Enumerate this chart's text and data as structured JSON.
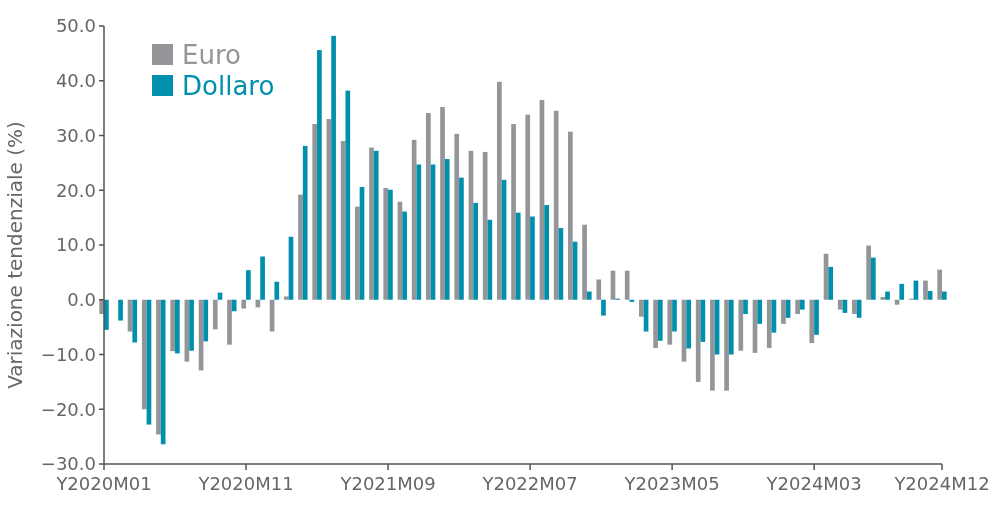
{
  "chart_data": {
    "type": "bar",
    "ylabel": "Variazione tendenziale (%)",
    "x": [
      "2020-01",
      "2020-02",
      "2020-03",
      "2020-04",
      "2020-05",
      "2020-06",
      "2020-07",
      "2020-08",
      "2020-09",
      "2020-10",
      "2020-11",
      "2020-12",
      "2021-01",
      "2021-02",
      "2021-03",
      "2021-04",
      "2021-05",
      "2021-06",
      "2021-07",
      "2021-08",
      "2021-09",
      "2021-10",
      "2021-11",
      "2021-12",
      "2022-01",
      "2022-02",
      "2022-03",
      "2022-04",
      "2022-05",
      "2022-06",
      "2022-07",
      "2022-08",
      "2022-09",
      "2022-10",
      "2022-11",
      "2022-12",
      "2023-01",
      "2023-02",
      "2023-03",
      "2023-04",
      "2023-05",
      "2023-06",
      "2023-07",
      "2023-08",
      "2023-09",
      "2023-10",
      "2023-11",
      "2023-12",
      "2024-01",
      "2024-02",
      "2024-03",
      "2024-04",
      "2024-05",
      "2024-06",
      "2024-07",
      "2024-08",
      "2024-09",
      "2024-10",
      "2024-11",
      "2024-12"
    ],
    "series": [
      {
        "name": "Euro",
        "color": "#939598",
        "values": [
          -2.6,
          0.0,
          -5.8,
          -20.0,
          -24.6,
          -9.4,
          -11.3,
          -12.9,
          -5.4,
          -8.2,
          -1.6,
          -1.4,
          -5.8,
          0.6,
          19.2,
          32.1,
          33.0,
          29.0,
          17.0,
          27.8,
          20.4,
          17.9,
          29.2,
          34.1,
          35.2,
          30.3,
          27.2,
          27.0,
          39.8,
          32.1,
          33.8,
          36.5,
          34.5,
          30.7,
          13.7,
          3.7,
          5.3,
          5.3,
          -3.1,
          -8.8,
          -8.2,
          -11.3,
          -15.0,
          -16.6,
          -16.6,
          -9.3,
          -9.7,
          -8.8,
          -4.4,
          -2.6,
          -7.9,
          8.4,
          -1.8,
          -2.6,
          9.9,
          0.5,
          -0.9,
          0.2,
          3.5,
          5.5
        ]
      },
      {
        "name": "Dollaro",
        "color": "#008fac",
        "values": [
          -5.5,
          -3.8,
          -7.8,
          -22.8,
          -26.4,
          -9.8,
          -9.3,
          -7.6,
          1.3,
          -2.1,
          5.4,
          7.9,
          3.3,
          11.5,
          28.1,
          45.6,
          48.2,
          38.2,
          20.6,
          27.2,
          20.1,
          16.1,
          24.7,
          24.7,
          25.7,
          22.3,
          17.7,
          14.6,
          21.9,
          15.9,
          15.2,
          17.3,
          13.1,
          10.6,
          1.5,
          -2.9,
          0.2,
          -0.4,
          -5.8,
          -7.5,
          -5.8,
          -8.9,
          -7.7,
          -10.0,
          -10.0,
          -2.6,
          -4.4,
          -6.0,
          -3.3,
          -1.8,
          -6.4,
          6.0,
          -2.4,
          -3.3,
          7.7,
          1.5,
          2.9,
          3.5,
          1.6,
          1.5
        ]
      }
    ],
    "xlim": [
      "2020-01",
      "2024-12"
    ],
    "xticks": [
      {
        "value": "2020-01",
        "label": "Y2020M01"
      },
      {
        "value": "2020-11",
        "label": "Y2020M11"
      },
      {
        "value": "2021-09",
        "label": "Y2021M09"
      },
      {
        "value": "2022-07",
        "label": "Y2022M07"
      },
      {
        "value": "2023-05",
        "label": "Y2023M05"
      },
      {
        "value": "2024-03",
        "label": "Y2024M03"
      },
      {
        "value": "2024-12",
        "label": "Y2024M12"
      }
    ],
    "ylim": [
      -30,
      50
    ],
    "yticks": [
      {
        "value": -30,
        "label": "−30.0"
      },
      {
        "value": -20,
        "label": "−20.0"
      },
      {
        "value": -10,
        "label": "−10.0"
      },
      {
        "value": 0,
        "label": "0.0"
      },
      {
        "value": 10,
        "label": "10.0"
      },
      {
        "value": 20,
        "label": "20.0"
      },
      {
        "value": 30,
        "label": "30.0"
      },
      {
        "value": 40,
        "label": "40.0"
      },
      {
        "value": 50,
        "label": "50.0"
      }
    ],
    "legend": "top left",
    "grid": false
  }
}
